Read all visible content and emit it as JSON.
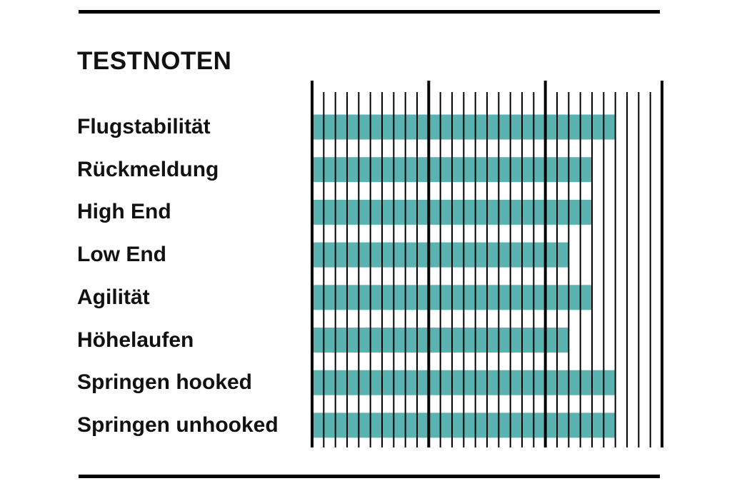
{
  "chart_data": {
    "type": "bar",
    "orientation": "horizontal",
    "title": "TESTNOTEN",
    "categories": [
      "Flugstabilität",
      "Rückmeldung",
      "High End",
      "Low End",
      "Agilität",
      "Höhelaufen",
      "Springen hooked",
      "Springen unhooked"
    ],
    "values": [
      9.6,
      9.4,
      9.4,
      9.2,
      9.4,
      9.2,
      9.6,
      9.6
    ],
    "xlim": [
      7,
      10
    ],
    "x_major_ticks": [
      7,
      8,
      9,
      10
    ],
    "x_minor_step": 0.1,
    "xlabel": "",
    "ylabel": "",
    "grid": true,
    "legend": "none",
    "colors": {
      "bar": "#5bb3b1",
      "gridline": "#000000",
      "text": "#111111",
      "rule": "#000000"
    }
  }
}
